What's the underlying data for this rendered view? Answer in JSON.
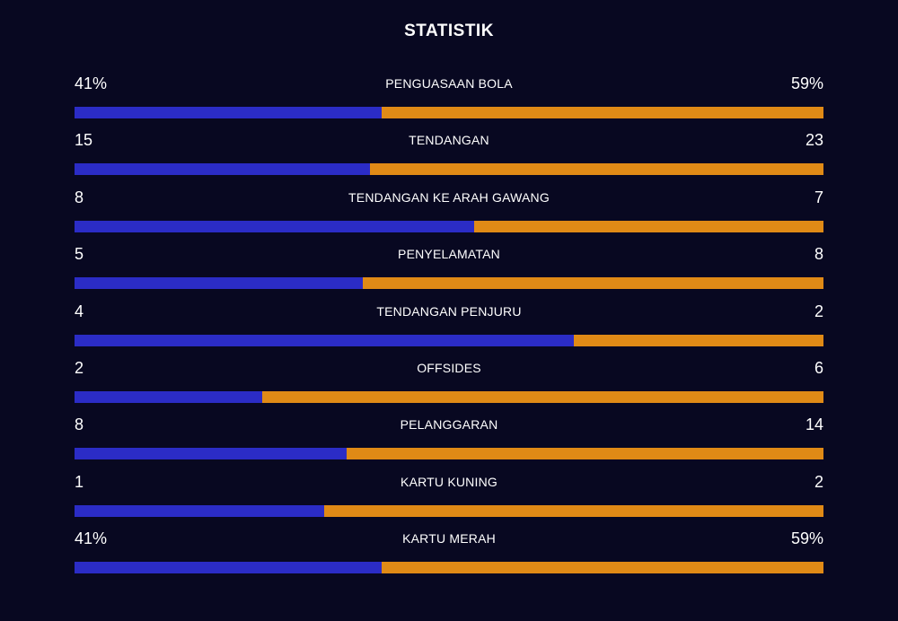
{
  "title": "STATISTIK",
  "colors": {
    "background": "#080821",
    "home_bar": "#2b2cc6",
    "away_bar": "#e08a16",
    "text": "#ffffff"
  },
  "stats": [
    {
      "label": "PENGUASAAN BOLA",
      "home": "41%",
      "away": "59%",
      "home_value": 41,
      "away_value": 59
    },
    {
      "label": "TENDANGAN",
      "home": "15",
      "away": "23",
      "home_value": 15,
      "away_value": 23
    },
    {
      "label": "TENDANGAN KE ARAH GAWANG",
      "home": "8",
      "away": "7",
      "home_value": 8,
      "away_value": 7
    },
    {
      "label": "PENYELAMATAN",
      "home": "5",
      "away": "8",
      "home_value": 5,
      "away_value": 8
    },
    {
      "label": "TENDANGAN PENJURU",
      "home": "4",
      "away": "2",
      "home_value": 4,
      "away_value": 2
    },
    {
      "label": "OFFSIDES",
      "home": "2",
      "away": "6",
      "home_value": 2,
      "away_value": 6
    },
    {
      "label": "PELANGGARAN",
      "home": "8",
      "away": "14",
      "home_value": 8,
      "away_value": 14
    },
    {
      "label": "KARTU KUNING",
      "home": "1",
      "away": "2",
      "home_value": 1,
      "away_value": 2
    },
    {
      "label": "KARTU MERAH",
      "home": "41%",
      "away": "59%",
      "home_value": 41,
      "away_value": 59
    }
  ]
}
